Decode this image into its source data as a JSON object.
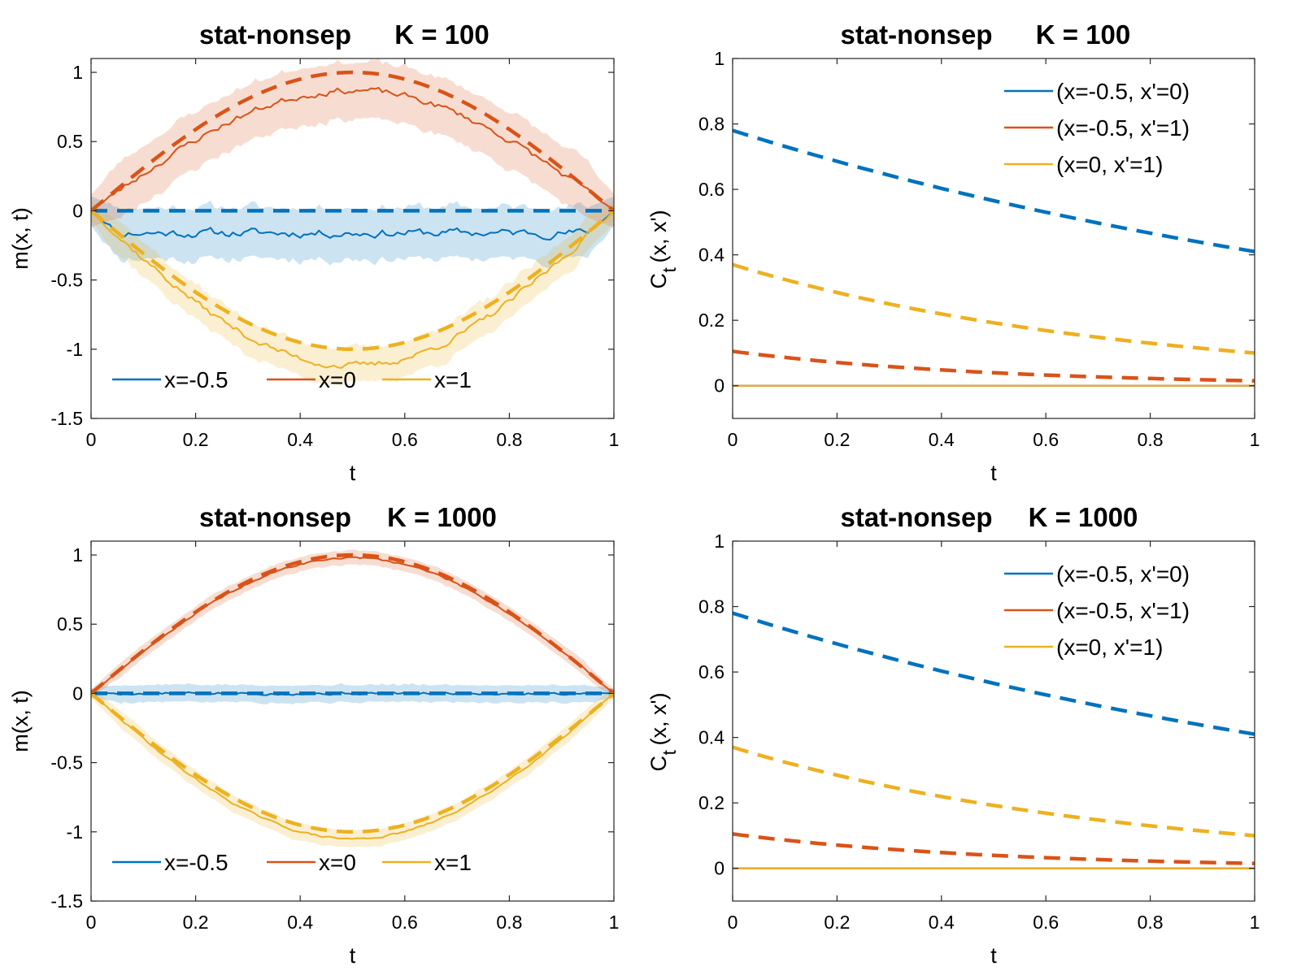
{
  "colors": {
    "blue": "#0072BD",
    "orange": "#D95319",
    "yellow": "#EDB120"
  },
  "chart_data": [
    {
      "id": "mean_k100",
      "type": "line",
      "title_left": "stat-nonsep",
      "title_right": "K = 100",
      "xlabel": "t",
      "ylabel": "m(x, t)",
      "xlim": [
        0,
        1
      ],
      "ylim": [
        -1.5,
        1.1
      ],
      "xticks": [
        0,
        0.2,
        0.4,
        0.6,
        0.8,
        1
      ],
      "xticklabels": [
        "0",
        "0.2",
        "0.4",
        "0.6",
        "0.8",
        "1"
      ],
      "yticks": [
        -1.5,
        -1,
        -0.5,
        0,
        0.5,
        1
      ],
      "yticklabels": [
        "-1.5",
        "-1",
        "-0.5",
        "0",
        "0.5",
        "1"
      ],
      "legend_position": "bottom",
      "series": [
        {
          "name": "x=-0.5",
          "color": "blue",
          "true_amp": 0,
          "est_amp": 0,
          "offset": -0.16,
          "band_half": 0.18,
          "noise": 0.025,
          "seed": 11
        },
        {
          "name": "x=0",
          "color": "orange",
          "true_amp": 1,
          "est_amp": 0.87,
          "offset": 0,
          "band_half": 0.2,
          "noise": 0.02,
          "seed": 23
        },
        {
          "name": "x=1",
          "color": "yellow",
          "true_amp": -1,
          "est_amp": -1.12,
          "offset": 0,
          "band_half": 0.12,
          "noise": 0.02,
          "seed": 37
        }
      ]
    },
    {
      "id": "cov_k100",
      "type": "line",
      "title_left": "stat-nonsep",
      "title_right": "K = 100",
      "xlabel": "t",
      "ylabel_main": "C",
      "ylabel_sub": "t",
      "ylabel_rest": "(x, x')",
      "xlim": [
        0,
        1
      ],
      "ylim": [
        -0.1,
        1
      ],
      "xticks": [
        0,
        0.2,
        0.4,
        0.6,
        0.8,
        1
      ],
      "xticklabels": [
        "0",
        "0.2",
        "0.4",
        "0.6",
        "0.8",
        "1"
      ],
      "yticks": [
        0,
        0.2,
        0.4,
        0.6,
        0.8,
        1
      ],
      "yticklabels": [
        "0",
        "0.2",
        "0.4",
        "0.6",
        "0.8",
        "1"
      ],
      "legend_position": "top-right",
      "series": [
        {
          "name": "(x=-0.5, x'=0)",
          "color": "blue",
          "dashed": {
            "start": 0.78,
            "end": 0.41
          },
          "solid_value": 0
        },
        {
          "name": "(x=-0.5, x'=1)",
          "color": "orange",
          "dashed": {
            "start": 0.105,
            "end": 0.015
          },
          "solid_value": 0
        },
        {
          "name": "(x=0, x'=1)",
          "color": "yellow",
          "dashed": {
            "start": 0.37,
            "end": 0.1
          },
          "solid_value": 0
        }
      ]
    },
    {
      "id": "mean_k1000",
      "type": "line",
      "title_left": "stat-nonsep",
      "title_right": "K = 1000",
      "xlabel": "t",
      "ylabel": "m(x, t)",
      "xlim": [
        0,
        1
      ],
      "ylim": [
        -1.5,
        1.1
      ],
      "xticks": [
        0,
        0.2,
        0.4,
        0.6,
        0.8,
        1
      ],
      "xticklabels": [
        "0",
        "0.2",
        "0.4",
        "0.6",
        "0.8",
        "1"
      ],
      "yticks": [
        -1.5,
        -1,
        -0.5,
        0,
        0.5,
        1
      ],
      "yticklabels": [
        "-1.5",
        "-1",
        "-0.5",
        "0",
        "0.5",
        "1"
      ],
      "legend_position": "bottom",
      "series": [
        {
          "name": "x=-0.5",
          "color": "blue",
          "true_amp": 0,
          "est_amp": 0,
          "offset": 0,
          "band_half": 0.06,
          "noise": 0.008,
          "seed": 5
        },
        {
          "name": "x=0",
          "color": "orange",
          "true_amp": 1,
          "est_amp": 0.98,
          "offset": 0,
          "band_half": 0.05,
          "noise": 0.006,
          "seed": 19
        },
        {
          "name": "x=1",
          "color": "yellow",
          "true_amp": -1,
          "est_amp": -1.05,
          "offset": 0,
          "band_half": 0.06,
          "noise": 0.006,
          "seed": 29
        }
      ]
    },
    {
      "id": "cov_k1000",
      "type": "line",
      "title_left": "stat-nonsep",
      "title_right": "K = 1000",
      "xlabel": "t",
      "ylabel_main": "C",
      "ylabel_sub": "t",
      "ylabel_rest": "(x, x')",
      "xlim": [
        0,
        1
      ],
      "ylim": [
        -0.1,
        1
      ],
      "xticks": [
        0,
        0.2,
        0.4,
        0.6,
        0.8,
        1
      ],
      "xticklabels": [
        "0",
        "0.2",
        "0.4",
        "0.6",
        "0.8",
        "1"
      ],
      "yticks": [
        0,
        0.2,
        0.4,
        0.6,
        0.8,
        1
      ],
      "yticklabels": [
        "0",
        "0.2",
        "0.4",
        "0.6",
        "0.8",
        "1"
      ],
      "legend_position": "top-right",
      "series": [
        {
          "name": "(x=-0.5, x'=0)",
          "color": "blue",
          "dashed": {
            "start": 0.78,
            "end": 0.41
          },
          "solid_value": 0
        },
        {
          "name": "(x=-0.5, x'=1)",
          "color": "orange",
          "dashed": {
            "start": 0.105,
            "end": 0.015
          },
          "solid_value": 0
        },
        {
          "name": "(x=0, x'=1)",
          "color": "yellow",
          "dashed": {
            "start": 0.37,
            "end": 0.1
          },
          "solid_value": 0
        }
      ]
    }
  ]
}
